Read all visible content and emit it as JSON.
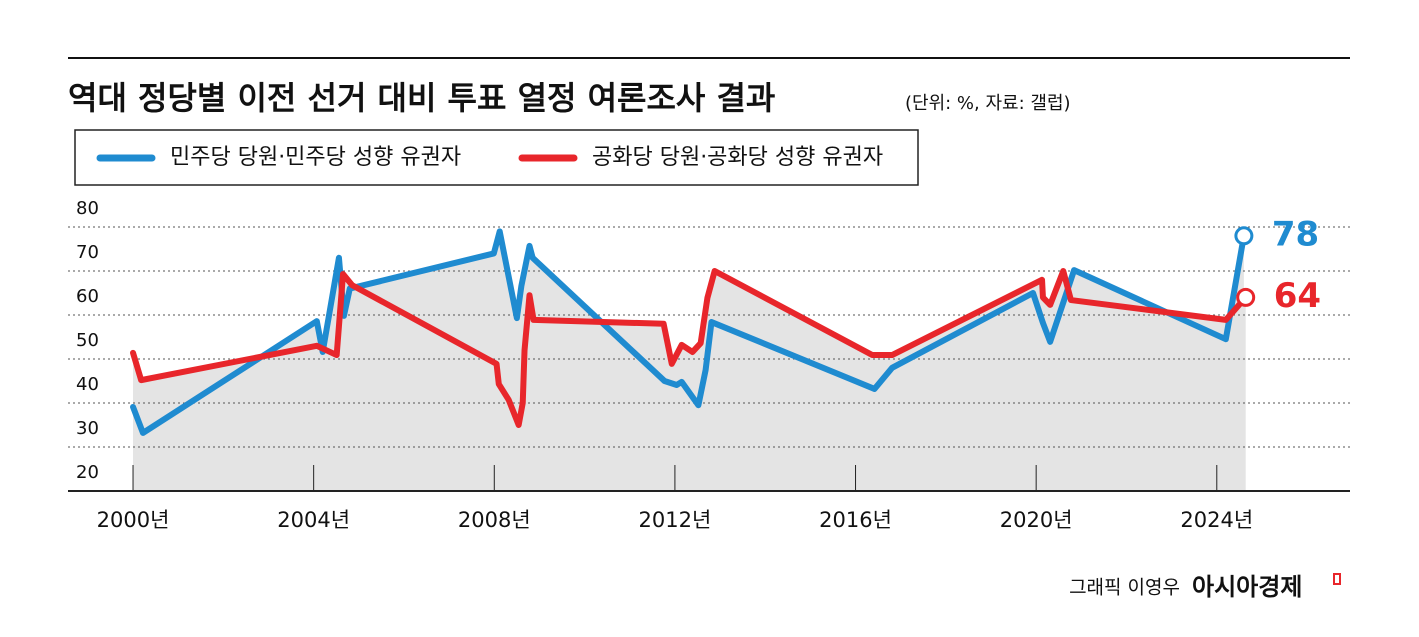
{
  "chart_data": {
    "type": "line",
    "title": "역대 정당별 이전 선거 대비 투표 열정 여론조사 결과",
    "subtitle": "(단위: %, 자료: 갤럽)",
    "legend": "top-left",
    "ylim": [
      20,
      80
    ],
    "yticks": [
      20,
      30,
      40,
      50,
      60,
      70,
      80
    ],
    "grid": true,
    "xlim": [
      1998.56,
      2026.95
    ],
    "xticks": [
      {
        "value": 2000,
        "label": "2000년"
      },
      {
        "value": 2004,
        "label": "2004년"
      },
      {
        "value": 2008,
        "label": "2008년"
      },
      {
        "value": 2012,
        "label": "2012년"
      },
      {
        "value": 2016,
        "label": "2016년"
      },
      {
        "value": 2020,
        "label": "2020년"
      },
      {
        "value": 2024,
        "label": "2024년"
      }
    ],
    "series": [
      {
        "name": "민주당 당원·민주당 성향 유권자",
        "color": "#1f8bd0",
        "x": [
          2000.0,
          2000.22,
          2004.07,
          2004.2,
          2004.56,
          2004.67,
          2004.8,
          2007.99,
          2008.12,
          2008.5,
          2008.6,
          2008.78,
          2008.85,
          2011.77,
          2012.04,
          2012.15,
          2012.52,
          2012.68,
          2012.81,
          2016.42,
          2016.81,
          2019.93,
          2020.15,
          2020.31,
          2020.84,
          2024.2,
          2024.6
        ],
        "values": [
          39.1,
          33.2,
          58.6,
          51.6,
          73,
          59.8,
          66,
          74,
          79,
          59.3,
          66.6,
          75.7,
          73,
          45,
          44.1,
          44.8,
          39.5,
          47.5,
          58.4,
          43.2,
          48,
          65,
          58.2,
          53.9,
          70.2,
          54.5,
          78
        ]
      },
      {
        "name": "공화당 당원·공화당 성향 유권자",
        "color": "#e8262b",
        "x": [
          2000.0,
          2000.18,
          2004.07,
          2004.51,
          2004.65,
          2004.85,
          2008.05,
          2008.1,
          2008.32,
          2008.54,
          2008.63,
          2008.67,
          2008.78,
          2008.87,
          2011.75,
          2011.93,
          2012.15,
          2012.39,
          2012.57,
          2012.72,
          2012.88,
          2016.37,
          2016.81,
          2020.13,
          2020.15,
          2020.31,
          2020.6,
          2020.77,
          2024.2,
          2024.64
        ],
        "values": [
          51.4,
          45.2,
          53,
          50.9,
          69.3,
          66.8,
          48.9,
          44.3,
          40.7,
          35,
          40,
          52,
          64.5,
          58.9,
          58,
          48.9,
          53.2,
          51.6,
          53.6,
          63.9,
          70,
          50.9,
          50.9,
          68,
          64,
          62.3,
          70,
          63.4,
          58.9,
          64
        ]
      }
    ]
  },
  "footer": {
    "credit": "그래픽 이영우",
    "brand": "아시아경제"
  }
}
